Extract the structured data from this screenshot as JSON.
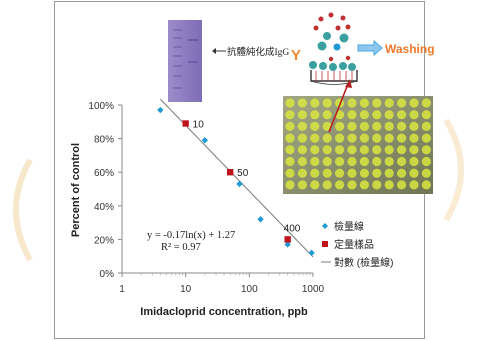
{
  "chart_data": {
    "type": "scatter",
    "x_scale": "log",
    "xlabel": "Imidacloprid concentration, ppb",
    "ylabel": "Percent of control",
    "xlim": [
      1,
      1000
    ],
    "ylim": [
      0,
      100
    ],
    "x_ticks": [
      "1",
      "10",
      "100",
      "1000"
    ],
    "y_ticks": [
      "0%",
      "20%",
      "40%",
      "60%",
      "80%",
      "100%"
    ],
    "grid": false,
    "legend_position": "right",
    "series": [
      {
        "name": "檢量線",
        "color": "#1f9ad6",
        "marker": "diamond",
        "points": [
          {
            "x": 4,
            "y": 97
          },
          {
            "x": 20,
            "y": 79
          },
          {
            "x": 70,
            "y": 53
          },
          {
            "x": 150,
            "y": 32
          },
          {
            "x": 400,
            "y": 17
          },
          {
            "x": 950,
            "y": 12
          }
        ]
      },
      {
        "name": "定量樣品",
        "color": "#c0141c",
        "marker": "square",
        "points": [
          {
            "x": 10,
            "y": 89,
            "label": "10"
          },
          {
            "x": 50,
            "y": 60,
            "label": "50"
          },
          {
            "x": 400,
            "y": 20,
            "label": "400"
          }
        ]
      },
      {
        "name": "對數 (檢量線)",
        "color": "#7a7a7a",
        "marker": "line",
        "fit": {
          "a": -0.17,
          "b": 1.27
        }
      }
    ],
    "equation": "y = -0.17ln(x) + 1.27",
    "r_squared": "R² = 0.97"
  },
  "inset": {
    "gel_label": "抗體純化成IgG",
    "antibody_glyph": "Y",
    "washing_label": "Washing",
    "colors": {
      "gel": "#8a78c0",
      "antibody": "#f08a2a",
      "washing": "#f0782a",
      "arrow": "#4aa7e6",
      "plate": "#9aa06a",
      "well": "#d8e640"
    }
  }
}
